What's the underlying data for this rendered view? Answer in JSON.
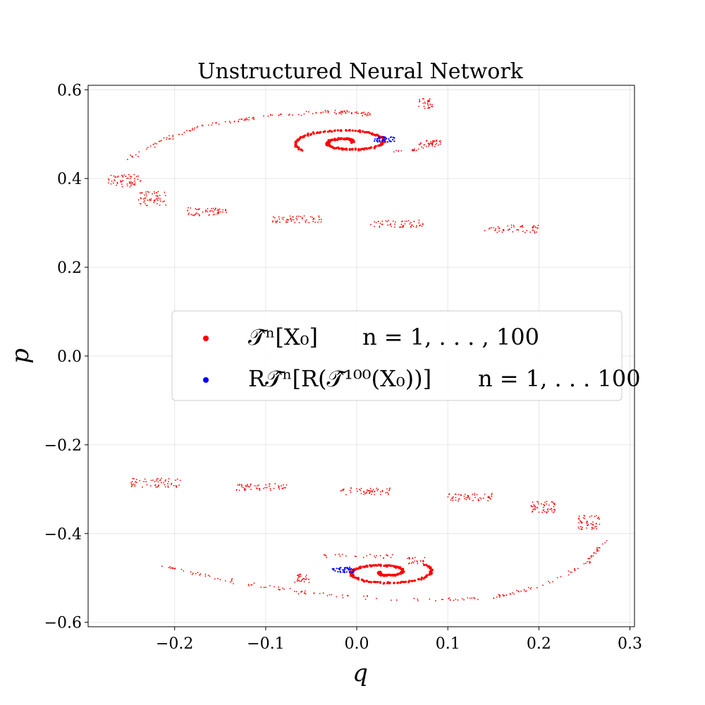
{
  "chart_data": {
    "type": "scatter",
    "title": "Unstructured Neural Network",
    "xlabel": "q",
    "ylabel": "p",
    "xlim": [
      -0.295,
      0.305
    ],
    "ylim": [
      -0.61,
      0.61
    ],
    "xticks": [
      -0.2,
      -0.1,
      0.0,
      0.1,
      0.2,
      0.3
    ],
    "xtick_labels": [
      "−0.2",
      "−0.1",
      "0.0",
      "0.1",
      "0.2",
      "0.3"
    ],
    "yticks": [
      -0.6,
      -0.4,
      -0.2,
      0.0,
      0.2,
      0.4,
      0.6
    ],
    "ytick_labels": [
      "−0.6",
      "−0.4",
      "−0.2",
      "0.0",
      "0.2",
      "0.4",
      "0.6"
    ],
    "grid": true,
    "legend_position": "center",
    "series": [
      {
        "name": "T̂ⁿ[X₀]      n = 1, . . . , 100",
        "color": "#ff0000",
        "clusters": [
          {
            "q": -0.255,
            "p": 0.395,
            "dq": 0.018,
            "dp": 0.014,
            "n": 60
          },
          {
            "q": -0.225,
            "p": 0.355,
            "dq": 0.016,
            "dp": 0.016,
            "n": 55
          },
          {
            "q": -0.165,
            "p": 0.325,
            "dq": 0.022,
            "dp": 0.009,
            "n": 55
          },
          {
            "q": -0.065,
            "p": 0.308,
            "dq": 0.028,
            "dp": 0.008,
            "n": 55
          },
          {
            "q": 0.045,
            "p": 0.298,
            "dq": 0.03,
            "dp": 0.008,
            "n": 55
          },
          {
            "q": 0.17,
            "p": 0.286,
            "dq": 0.03,
            "dp": 0.009,
            "n": 55
          },
          {
            "q": -0.22,
            "p": -0.285,
            "dq": 0.028,
            "dp": 0.011,
            "n": 60
          },
          {
            "q": -0.105,
            "p": -0.295,
            "dq": 0.028,
            "dp": 0.008,
            "n": 55
          },
          {
            "q": 0.01,
            "p": -0.305,
            "dq": 0.028,
            "dp": 0.008,
            "n": 55
          },
          {
            "q": 0.125,
            "p": -0.318,
            "dq": 0.025,
            "dp": 0.009,
            "n": 55
          },
          {
            "q": 0.205,
            "p": -0.34,
            "dq": 0.014,
            "dp": 0.013,
            "n": 55
          },
          {
            "q": 0.255,
            "p": -0.375,
            "dq": 0.012,
            "dp": 0.016,
            "n": 55
          },
          {
            "q": 0.075,
            "p": 0.57,
            "dq": 0.008,
            "dp": 0.012,
            "n": 30
          },
          {
            "q": 0.08,
            "p": 0.48,
            "dq": 0.012,
            "dp": 0.008,
            "n": 30
          },
          {
            "q": -0.06,
            "p": -0.5,
            "dq": 0.008,
            "dp": 0.01,
            "n": 30
          },
          {
            "q": 0.065,
            "p": -0.46,
            "dq": 0.01,
            "dp": 0.008,
            "n": 25
          }
        ],
        "arcs": [
          {
            "q": [
              -0.255,
              -0.22,
              -0.17,
              -0.1,
              -0.03,
              0.02
            ],
            "p": [
              0.44,
              0.48,
              0.52,
              0.54,
              0.55,
              0.545
            ],
            "n": 140
          },
          {
            "q": [
              -0.22,
              -0.13,
              -0.05,
              0.05,
              0.15,
              0.2,
              0.25,
              0.275
            ],
            "p": [
              -0.47,
              -0.51,
              -0.535,
              -0.55,
              -0.545,
              -0.52,
              -0.47,
              -0.415
            ],
            "n": 170
          },
          {
            "q": [
              0.04,
              0.07,
              0.09
            ],
            "p": [
              0.46,
              0.465,
              0.49
            ],
            "n": 25
          },
          {
            "q": [
              -0.04,
              -0.01,
              0.02,
              0.04
            ],
            "p": [
              -0.45,
              -0.448,
              -0.45,
              -0.452
            ],
            "n": 25
          }
        ],
        "spirals": [
          {
            "q": -0.01,
            "p": 0.482,
            "r0": 0.004,
            "r1": 0.06,
            "turns": 1.6,
            "phase": 0.0,
            "ry": 0.55,
            "n": 260
          },
          {
            "q": 0.03,
            "p": -0.487,
            "r0": 0.004,
            "r1": 0.055,
            "turns": 1.6,
            "phase": 3.14159,
            "ry": 0.55,
            "n": 240
          }
        ]
      },
      {
        "name": "RT̂ⁿ[R(T̂¹⁰⁰(X₀))]      n = 1, . . . 100",
        "color": "#0000ff",
        "clusters": [
          {
            "q": 0.03,
            "p": 0.488,
            "dq": 0.012,
            "dp": 0.006,
            "n": 40
          },
          {
            "q": -0.015,
            "p": -0.482,
            "dq": 0.012,
            "dp": 0.006,
            "n": 40
          }
        ]
      }
    ]
  },
  "legend": {
    "entry1_main": "𝒯̂ⁿ[X₀]",
    "entry1_range": "n = 1, . . . , 100",
    "entry2_main": "R𝒯̂ⁿ[R(𝒯̂¹⁰⁰(X₀))]",
    "entry2_range": "n = 1, . . . 100"
  }
}
